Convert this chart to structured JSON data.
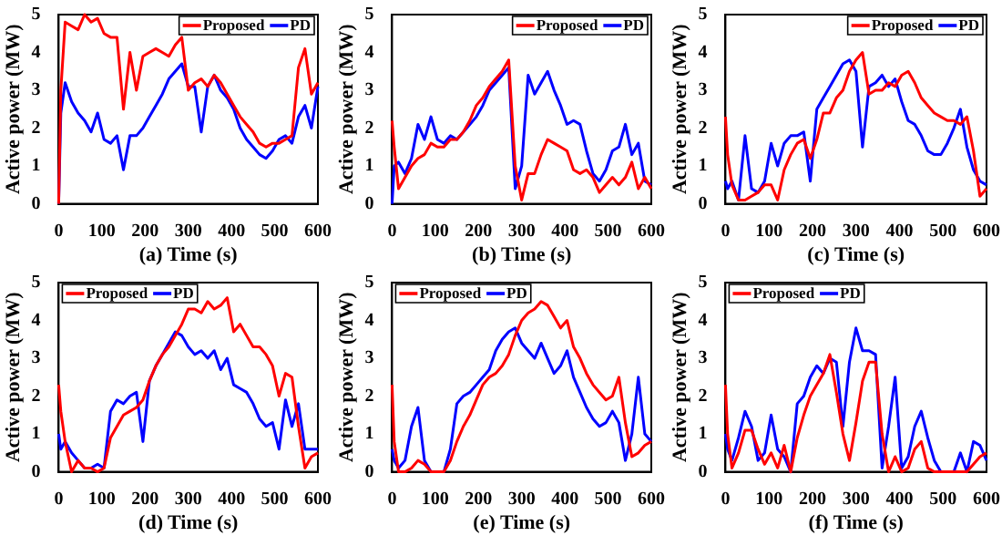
{
  "chart_data": [
    {
      "type": "line",
      "xlabel": "(a) Time (s)",
      "ylabel": "Active power (MW)",
      "xlim": [
        0,
        600
      ],
      "xticks": [
        0,
        100,
        200,
        300,
        400,
        500,
        600
      ],
      "ylim": [
        0,
        5
      ],
      "yticks": [
        0,
        1,
        2,
        3,
        4,
        5
      ],
      "legend": "top right",
      "grid": false,
      "marker": "none",
      "line_style": "solid",
      "x": [
        0,
        5,
        15,
        30,
        45,
        60,
        75,
        90,
        105,
        120,
        135,
        150,
        165,
        180,
        195,
        210,
        225,
        240,
        255,
        270,
        285,
        300,
        315,
        330,
        345,
        360,
        375,
        390,
        405,
        420,
        435,
        450,
        465,
        480,
        495,
        510,
        525,
        540,
        555,
        570,
        585,
        600
      ],
      "series": [
        {
          "name": "Proposed",
          "color": "#ff0000",
          "values": [
            0,
            3.0,
            4.8,
            4.7,
            4.6,
            5.0,
            4.8,
            4.9,
            4.5,
            4.4,
            4.4,
            2.5,
            4.0,
            3.0,
            3.9,
            4.0,
            4.1,
            4.0,
            3.9,
            4.2,
            4.4,
            3.0,
            3.2,
            3.3,
            3.1,
            3.4,
            3.2,
            2.9,
            2.6,
            2.3,
            2.1,
            1.9,
            1.6,
            1.5,
            1.6,
            1.6,
            1.7,
            1.8,
            3.6,
            4.1,
            2.9,
            3.2
          ]
        },
        {
          "name": "PD",
          "color": "#0000ff",
          "values": [
            0,
            2.4,
            3.2,
            2.7,
            2.4,
            2.2,
            1.9,
            2.4,
            1.7,
            1.6,
            1.8,
            0.9,
            1.8,
            1.8,
            2.0,
            2.3,
            2.6,
            2.9,
            3.3,
            3.5,
            3.7,
            3.1,
            3.1,
            1.9,
            3.1,
            3.4,
            3.0,
            2.8,
            2.5,
            2.0,
            1.7,
            1.5,
            1.3,
            1.2,
            1.4,
            1.7,
            1.8,
            1.6,
            2.3,
            2.6,
            2.0,
            3.1
          ]
        }
      ]
    },
    {
      "type": "line",
      "xlabel": "(b) Time (s)",
      "ylabel": "Active power (MW)",
      "xlim": [
        0,
        600
      ],
      "xticks": [
        0,
        100,
        200,
        300,
        400,
        500,
        600
      ],
      "ylim": [
        0,
        5
      ],
      "yticks": [
        0,
        1,
        2,
        3,
        4,
        5
      ],
      "legend": "top right",
      "grid": false,
      "marker": "none",
      "line_style": "solid",
      "x": [
        0,
        5,
        15,
        30,
        45,
        60,
        75,
        90,
        105,
        120,
        135,
        150,
        165,
        180,
        195,
        210,
        225,
        240,
        255,
        270,
        285,
        300,
        315,
        330,
        345,
        360,
        375,
        390,
        405,
        420,
        435,
        450,
        465,
        480,
        495,
        510,
        525,
        540,
        555,
        570,
        585,
        600
      ],
      "series": [
        {
          "name": "Proposed",
          "color": "#ff0000",
          "values": [
            2.2,
            1.5,
            0.4,
            0.7,
            1.0,
            1.2,
            1.3,
            1.6,
            1.5,
            1.5,
            1.7,
            1.7,
            1.9,
            2.2,
            2.6,
            2.8,
            3.1,
            3.3,
            3.5,
            3.8,
            1.0,
            0.1,
            0.8,
            0.8,
            1.3,
            1.7,
            1.6,
            1.5,
            1.4,
            0.9,
            0.8,
            0.9,
            0.7,
            0.3,
            0.5,
            0.7,
            0.5,
            0.7,
            1.1,
            0.4,
            0.7,
            0.4
          ]
        },
        {
          "name": "PD",
          "color": "#0000ff",
          "values": [
            0,
            1.0,
            1.1,
            0.8,
            1.2,
            2.1,
            1.7,
            2.3,
            1.7,
            1.6,
            1.8,
            1.7,
            1.9,
            2.1,
            2.3,
            2.6,
            3.0,
            3.2,
            3.4,
            3.6,
            0.4,
            1.0,
            3.4,
            2.9,
            3.2,
            3.5,
            3.0,
            2.6,
            2.1,
            2.2,
            2.1,
            1.4,
            0.8,
            0.6,
            0.9,
            1.4,
            1.5,
            2.1,
            1.3,
            1.6,
            0.6,
            0.5
          ]
        }
      ]
    },
    {
      "type": "line",
      "xlabel": "(c) Time (s)",
      "ylabel": "Active power (MW)",
      "xlim": [
        0,
        600
      ],
      "xticks": [
        0,
        100,
        200,
        300,
        400,
        500,
        600
      ],
      "ylim": [
        0,
        5
      ],
      "yticks": [
        0,
        1,
        2,
        3,
        4,
        5
      ],
      "legend": "top right",
      "grid": false,
      "marker": "none",
      "line_style": "solid",
      "x": [
        0,
        5,
        15,
        30,
        45,
        60,
        75,
        90,
        105,
        120,
        135,
        150,
        165,
        180,
        195,
        210,
        225,
        240,
        255,
        270,
        285,
        300,
        315,
        330,
        345,
        360,
        375,
        390,
        405,
        420,
        435,
        450,
        465,
        480,
        495,
        510,
        525,
        540,
        555,
        570,
        585,
        600
      ],
      "series": [
        {
          "name": "Proposed",
          "color": "#ff0000",
          "values": [
            2.3,
            1.3,
            0.5,
            0.1,
            0.1,
            0.2,
            0.3,
            0.5,
            0.5,
            0.1,
            0.9,
            1.3,
            1.6,
            1.7,
            1.2,
            1.7,
            2.4,
            2.4,
            2.8,
            3.0,
            3.5,
            3.8,
            4.0,
            2.9,
            3.0,
            3.0,
            3.2,
            3.1,
            3.4,
            3.5,
            3.2,
            2.8,
            2.6,
            2.4,
            2.3,
            2.2,
            2.2,
            2.1,
            2.3,
            1.4,
            0.2,
            0.4
          ]
        },
        {
          "name": "PD",
          "color": "#0000ff",
          "values": [
            0.6,
            0.4,
            0.6,
            0.1,
            1.8,
            0.4,
            0.3,
            0.6,
            1.6,
            1.0,
            1.6,
            1.8,
            1.8,
            1.9,
            0.6,
            2.5,
            2.8,
            3.1,
            3.4,
            3.7,
            3.8,
            3.5,
            1.5,
            3.1,
            3.2,
            3.4,
            3.1,
            3.3,
            2.7,
            2.2,
            2.1,
            1.8,
            1.4,
            1.3,
            1.3,
            1.6,
            2.0,
            2.5,
            1.5,
            0.9,
            0.6,
            0.5
          ]
        }
      ]
    },
    {
      "type": "line",
      "xlabel": "(d) Time (s)",
      "ylabel": "Active power (MW)",
      "xlim": [
        0,
        600
      ],
      "xticks": [
        0,
        100,
        200,
        300,
        400,
        500,
        600
      ],
      "ylim": [
        0,
        5
      ],
      "yticks": [
        0,
        1,
        2,
        3,
        4,
        5
      ],
      "legend": "top left",
      "grid": false,
      "marker": "none",
      "line_style": "solid",
      "x": [
        0,
        5,
        15,
        30,
        45,
        60,
        75,
        90,
        105,
        120,
        135,
        150,
        165,
        180,
        195,
        210,
        225,
        240,
        255,
        270,
        285,
        300,
        315,
        330,
        345,
        360,
        375,
        390,
        405,
        420,
        435,
        450,
        465,
        480,
        495,
        510,
        525,
        540,
        555,
        570,
        585,
        600
      ],
      "series": [
        {
          "name": "Proposed",
          "color": "#ff0000",
          "values": [
            2.3,
            1.6,
            0.8,
            0.0,
            0.3,
            0.1,
            0.1,
            0.0,
            0.1,
            0.9,
            1.2,
            1.5,
            1.6,
            1.7,
            1.9,
            2.4,
            2.8,
            3.1,
            3.3,
            3.6,
            3.9,
            4.3,
            4.3,
            4.2,
            4.5,
            4.3,
            4.4,
            4.6,
            3.7,
            3.9,
            3.6,
            3.3,
            3.3,
            3.1,
            2.8,
            2.0,
            2.6,
            2.5,
            1.2,
            0.1,
            0.4,
            0.5
          ]
        },
        {
          "name": "PD",
          "color": "#0000ff",
          "values": [
            1.0,
            0.6,
            0.8,
            0.5,
            0.3,
            0.1,
            0.1,
            0.2,
            0.1,
            1.6,
            1.9,
            1.8,
            2.0,
            2.1,
            0.8,
            2.4,
            2.8,
            3.1,
            3.4,
            3.7,
            3.6,
            3.3,
            3.1,
            3.2,
            3.0,
            3.2,
            2.7,
            3.0,
            2.3,
            2.2,
            2.1,
            1.8,
            1.4,
            1.2,
            1.3,
            0.6,
            1.9,
            1.2,
            1.8,
            0.6,
            0.6,
            0.6
          ]
        }
      ]
    },
    {
      "type": "line",
      "xlabel": "(e) Time (s)",
      "ylabel": "Active power (MW)",
      "xlim": [
        0,
        600
      ],
      "xticks": [
        0,
        100,
        200,
        300,
        400,
        500,
        600
      ],
      "ylim": [
        0,
        5
      ],
      "yticks": [
        0,
        1,
        2,
        3,
        4,
        5
      ],
      "legend": "top left",
      "grid": false,
      "marker": "none",
      "line_style": "solid",
      "x": [
        0,
        5,
        15,
        30,
        45,
        60,
        75,
        90,
        105,
        120,
        135,
        150,
        165,
        180,
        195,
        210,
        225,
        240,
        255,
        270,
        285,
        300,
        315,
        330,
        345,
        360,
        375,
        390,
        405,
        420,
        435,
        450,
        465,
        480,
        495,
        510,
        525,
        540,
        555,
        570,
        585,
        600
      ],
      "series": [
        {
          "name": "Proposed",
          "color": "#ff0000",
          "values": [
            2.3,
            0.8,
            0.0,
            0.0,
            0.1,
            0.3,
            0.2,
            0.0,
            0.0,
            0.0,
            0.3,
            0.8,
            1.2,
            1.5,
            1.9,
            2.3,
            2.5,
            2.6,
            2.8,
            3.1,
            3.6,
            4.0,
            4.2,
            4.3,
            4.5,
            4.4,
            4.1,
            3.8,
            4.0,
            3.3,
            3.0,
            2.6,
            2.3,
            2.1,
            1.9,
            2.0,
            2.5,
            1.3,
            0.4,
            0.5,
            0.7,
            0.8
          ]
        },
        {
          "name": "PD",
          "color": "#0000ff",
          "values": [
            0.6,
            0.3,
            0.1,
            0.3,
            1.2,
            1.7,
            0.3,
            0.0,
            0.0,
            0.0,
            0.6,
            1.8,
            2.0,
            2.1,
            2.3,
            2.5,
            2.7,
            3.2,
            3.5,
            3.7,
            3.8,
            3.4,
            3.2,
            3.0,
            3.4,
            3.0,
            2.6,
            2.8,
            3.2,
            2.5,
            2.1,
            1.7,
            1.4,
            1.2,
            1.3,
            1.6,
            1.3,
            0.3,
            1.0,
            2.5,
            1.0,
            0.8
          ]
        }
      ]
    },
    {
      "type": "line",
      "xlabel": "(f) Time (s)",
      "ylabel": "Active power (MW)",
      "xlim": [
        0,
        600
      ],
      "xticks": [
        0,
        100,
        200,
        300,
        400,
        500,
        600
      ],
      "ylim": [
        0,
        5
      ],
      "yticks": [
        0,
        1,
        2,
        3,
        4,
        5
      ],
      "legend": "top left",
      "grid": false,
      "marker": "none",
      "line_style": "solid",
      "x": [
        0,
        5,
        15,
        30,
        45,
        60,
        75,
        90,
        105,
        120,
        135,
        150,
        165,
        180,
        195,
        210,
        225,
        240,
        255,
        270,
        285,
        300,
        315,
        330,
        345,
        360,
        375,
        390,
        405,
        420,
        435,
        450,
        465,
        480,
        495,
        510,
        525,
        540,
        555,
        570,
        585,
        600
      ],
      "series": [
        {
          "name": "Proposed",
          "color": "#ff0000",
          "values": [
            2.3,
            1.0,
            0.1,
            0.5,
            1.1,
            1.1,
            0.6,
            0.2,
            0.5,
            0.1,
            0.7,
            0.0,
            0.9,
            1.5,
            2.0,
            2.3,
            2.6,
            3.1,
            2.1,
            1.0,
            0.3,
            1.3,
            2.4,
            2.9,
            2.9,
            1.0,
            0.0,
            0.4,
            0.0,
            0.1,
            0.6,
            0.8,
            0.1,
            0.0,
            0.0,
            0.0,
            0.0,
            0.0,
            0.0,
            0.2,
            0.4,
            0.5
          ]
        },
        {
          "name": "PD",
          "color": "#0000ff",
          "values": [
            1.0,
            0.6,
            0.3,
            0.9,
            1.6,
            1.2,
            0.3,
            0.5,
            1.5,
            0.6,
            0.4,
            0.0,
            1.8,
            2.0,
            2.5,
            2.8,
            2.6,
            3.0,
            2.9,
            1.2,
            2.9,
            3.8,
            3.2,
            3.2,
            3.1,
            0.1,
            1.2,
            2.5,
            0.1,
            0.4,
            1.2,
            1.6,
            0.9,
            0.3,
            0.0,
            0.0,
            0.0,
            0.5,
            0.0,
            0.8,
            0.7,
            0.3
          ]
        }
      ]
    }
  ]
}
